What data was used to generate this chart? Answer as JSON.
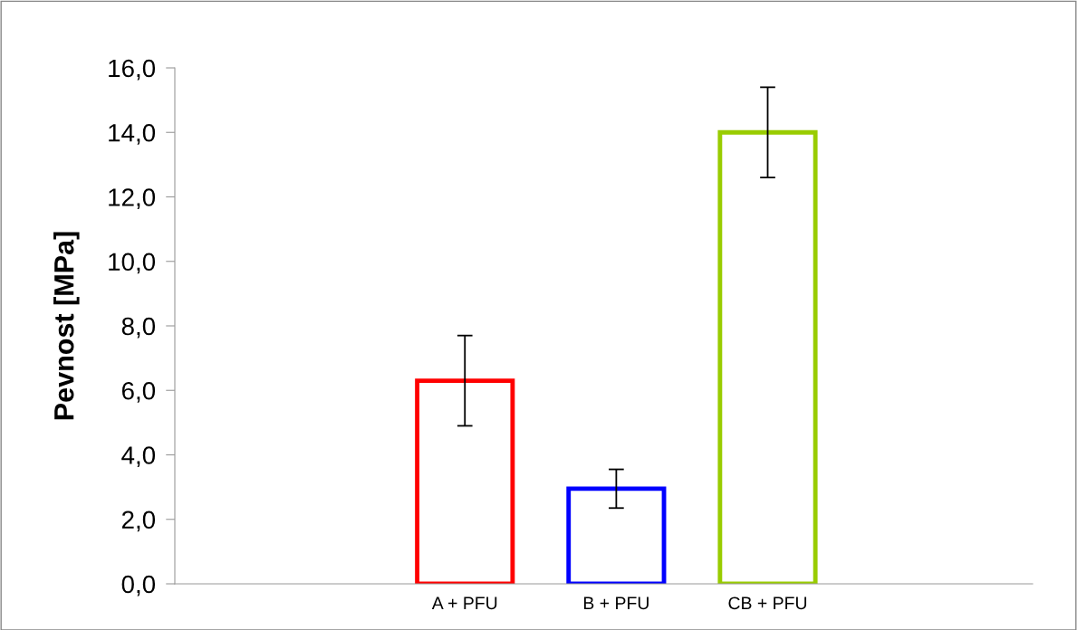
{
  "chart_data": {
    "type": "bar",
    "ylabel": "Pevnost [MPa]",
    "categories": [
      null,
      "A + PFU",
      "B + PFU",
      "CB + PFU",
      null
    ],
    "values": [
      null,
      6.3,
      2.95,
      14.0,
      null
    ],
    "errors": [
      null,
      1.4,
      0.6,
      1.4,
      null
    ],
    "colors": [
      "#ff0000",
      "#ff0000",
      "#0000ff",
      "#99cc00",
      "#99cc00"
    ],
    "ylim": [
      0,
      16
    ],
    "yticks": [
      {
        "value": 0,
        "label": "0,0"
      },
      {
        "value": 2,
        "label": "2,0"
      },
      {
        "value": 4,
        "label": "4,0"
      },
      {
        "value": 6,
        "label": "6,0"
      },
      {
        "value": 8,
        "label": "8,0"
      },
      {
        "value": 10,
        "label": "10,0"
      },
      {
        "value": 12,
        "label": "12,0"
      },
      {
        "value": 14,
        "label": "14,0"
      },
      {
        "value": 16,
        "label": "16,0"
      }
    ],
    "grid": false,
    "legend": false
  }
}
